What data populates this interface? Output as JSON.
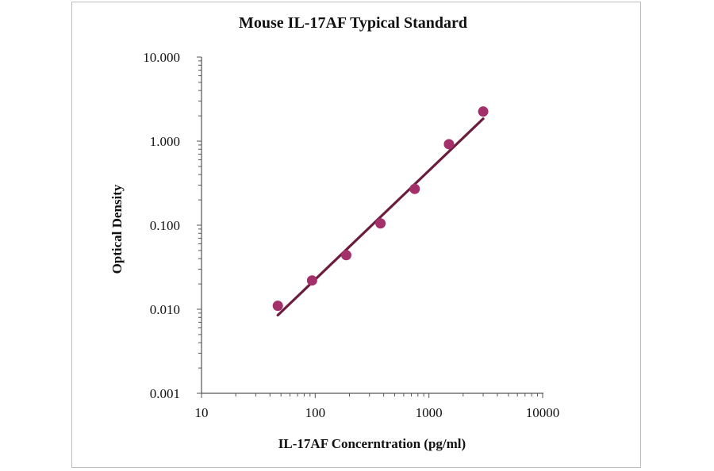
{
  "chart_data": {
    "type": "scatter",
    "title": "Mouse IL-17AF Typical Standard",
    "xlabel": "IL-17AF Concerntration (pg/ml)",
    "ylabel": "Optical Density",
    "x_scale": "log",
    "y_scale": "log",
    "xlim": [
      10,
      10000
    ],
    "ylim": [
      0.001,
      10
    ],
    "x_ticks": [
      10,
      100,
      1000,
      10000
    ],
    "x_tick_labels": [
      "10",
      "100",
      "1000",
      "10000"
    ],
    "y_ticks": [
      0.001,
      0.01,
      0.1,
      1,
      10
    ],
    "y_tick_labels": [
      "0.001",
      "0.010",
      "0.100",
      "1.000",
      "10.000"
    ],
    "grid": false,
    "marker_color": "#a3306a",
    "line_color": "#6b1d3e",
    "points": [
      {
        "x": 46.9,
        "y": 0.011
      },
      {
        "x": 93.8,
        "y": 0.022
      },
      {
        "x": 187.5,
        "y": 0.044
      },
      {
        "x": 375,
        "y": 0.105
      },
      {
        "x": 750,
        "y": 0.27
      },
      {
        "x": 1500,
        "y": 0.92
      },
      {
        "x": 3000,
        "y": 2.25
      }
    ],
    "fit": {
      "x": [
        46.9,
        3000
      ],
      "y": [
        0.0085,
        1.85
      ]
    }
  }
}
